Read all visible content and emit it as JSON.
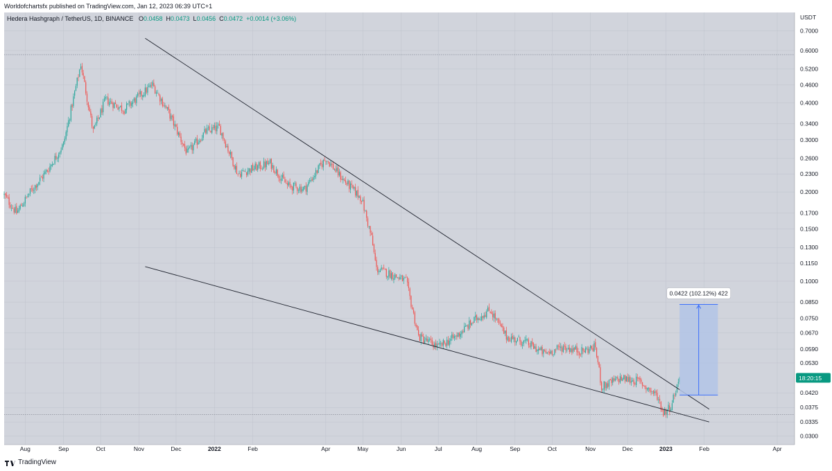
{
  "publisher": "Worldofchartsfx published on TradingView.com, Jan 12, 2023 06:39 UTC+1",
  "symbol": {
    "name": "Hedera Hashgraph / TetherUS, 1D, BINANCE",
    "o_label": "O",
    "o_value": "0.0458",
    "h_label": "H",
    "h_value": "0.0473",
    "l_label": "L",
    "l_value": "0.0456",
    "c_label": "C",
    "c_value": "0.0472",
    "change": "+0.0014 (+3.06%)"
  },
  "footer": {
    "brand": "TradingView"
  },
  "colors": {
    "background": "#d1d4dc",
    "up": "#26a69a",
    "down": "#ef5350",
    "grid": "#bfc3cd",
    "price_badge": "#089981",
    "measure_fill": "#b3c4e6",
    "measure_line": "#2962ff"
  },
  "chart_data": {
    "type": "candlestick",
    "title": "Hedera Hashgraph / TetherUS, 1D, BINANCE",
    "y_scale": "log",
    "y_unit": "USDT",
    "ylim": [
      0.029,
      0.74
    ],
    "y_ticks": [
      "0.7000",
      "0.6000",
      "0.5200",
      "0.4600",
      "0.4000",
      "0.3400",
      "0.3000",
      "0.2600",
      "0.2300",
      "0.2000",
      "0.1700",
      "0.1500",
      "0.1300",
      "0.1150",
      "0.1000",
      "0.0850",
      "0.0750",
      "0.0670",
      "0.0590",
      "0.0530",
      "0.0420",
      "0.0375",
      "0.0335",
      "0.0300"
    ],
    "x_ticks": [
      "Aug",
      "Sep",
      "Oct",
      "Nov",
      "Dec",
      "2022",
      "Feb",
      "Apr",
      "May",
      "Jun",
      "Jul",
      "Aug",
      "Sep",
      "Oct",
      "Nov",
      "Dec",
      "2023",
      "Feb",
      "Apr"
    ],
    "x_range": [
      "2021-07-15",
      "2023-04-15"
    ],
    "countdown": "18:20:15",
    "last_price": 0.0472,
    "price_path": [
      {
        "date": "2021-07-15",
        "price": 0.195
      },
      {
        "date": "2021-07-25",
        "price": 0.17
      },
      {
        "date": "2021-08-05",
        "price": 0.2
      },
      {
        "date": "2021-08-20",
        "price": 0.24
      },
      {
        "date": "2021-09-01",
        "price": 0.29
      },
      {
        "date": "2021-09-15",
        "price": 0.54
      },
      {
        "date": "2021-09-25",
        "price": 0.32
      },
      {
        "date": "2021-10-05",
        "price": 0.41
      },
      {
        "date": "2021-10-20",
        "price": 0.38
      },
      {
        "date": "2021-11-01",
        "price": 0.42
      },
      {
        "date": "2021-11-12",
        "price": 0.46
      },
      {
        "date": "2021-11-25",
        "price": 0.37
      },
      {
        "date": "2021-12-10",
        "price": 0.27
      },
      {
        "date": "2021-12-25",
        "price": 0.32
      },
      {
        "date": "2022-01-05",
        "price": 0.33
      },
      {
        "date": "2022-01-20",
        "price": 0.23
      },
      {
        "date": "2022-02-01",
        "price": 0.24
      },
      {
        "date": "2022-02-15",
        "price": 0.25
      },
      {
        "date": "2022-03-01",
        "price": 0.21
      },
      {
        "date": "2022-03-15",
        "price": 0.205
      },
      {
        "date": "2022-04-01",
        "price": 0.26
      },
      {
        "date": "2022-04-15",
        "price": 0.22
      },
      {
        "date": "2022-04-30",
        "price": 0.19
      },
      {
        "date": "2022-05-08",
        "price": 0.14
      },
      {
        "date": "2022-05-12",
        "price": 0.11
      },
      {
        "date": "2022-05-25",
        "price": 0.105
      },
      {
        "date": "2022-06-05",
        "price": 0.1
      },
      {
        "date": "2022-06-15",
        "price": 0.065
      },
      {
        "date": "2022-07-01",
        "price": 0.06
      },
      {
        "date": "2022-07-15",
        "price": 0.065
      },
      {
        "date": "2022-08-01",
        "price": 0.075
      },
      {
        "date": "2022-08-12",
        "price": 0.08
      },
      {
        "date": "2022-08-25",
        "price": 0.065
      },
      {
        "date": "2022-09-10",
        "price": 0.062
      },
      {
        "date": "2022-09-25",
        "price": 0.057
      },
      {
        "date": "2022-10-10",
        "price": 0.06
      },
      {
        "date": "2022-10-25",
        "price": 0.058
      },
      {
        "date": "2022-11-05",
        "price": 0.06
      },
      {
        "date": "2022-11-10",
        "price": 0.044
      },
      {
        "date": "2022-11-25",
        "price": 0.047
      },
      {
        "date": "2022-12-10",
        "price": 0.046
      },
      {
        "date": "2022-12-25",
        "price": 0.041
      },
      {
        "date": "2022-12-30",
        "price": 0.036
      },
      {
        "date": "2023-01-05",
        "price": 0.038
      },
      {
        "date": "2023-01-12",
        "price": 0.0472
      }
    ],
    "trendlines": [
      {
        "name": "upper",
        "from": {
          "date": "2021-11-06",
          "price": 0.66
        },
        "to": {
          "date": "2023-02-05",
          "price": 0.037
        }
      },
      {
        "name": "lower",
        "from": {
          "date": "2021-11-06",
          "price": 0.112
        },
        "to": {
          "date": "2023-02-05",
          "price": 0.0335
        }
      }
    ],
    "horizontal_lines": [
      0.581,
      0.0355
    ],
    "measure": {
      "label": "0.0422 (102.12%) 422",
      "from_date": "2023-01-12",
      "to_date": "2023-02-12",
      "low": 0.0413,
      "high": 0.0835
    }
  }
}
